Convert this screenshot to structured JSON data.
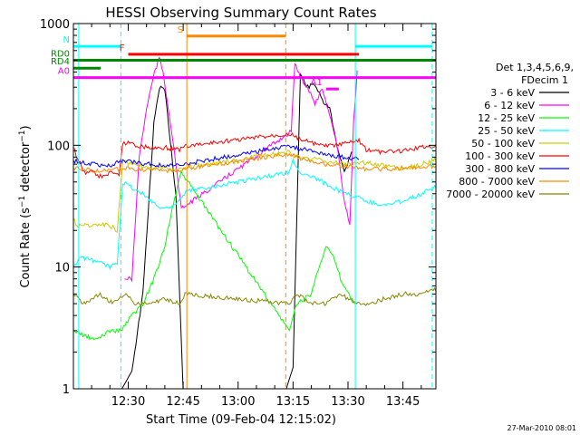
{
  "chart_data": {
    "type": "line",
    "title": "HESSI Observing Summary Count Rates",
    "xlabel": "Start Time (09-Feb-04 12:15:02)",
    "ylabel": "Count Rate (s⁻¹ detector⁻¹)",
    "y_scale": "log",
    "ylim": [
      1,
      1000
    ],
    "xlim": [
      "12:15:02",
      "13:54:00"
    ],
    "grid": false,
    "legend_placement": "right",
    "x_ticks": [
      "12:30",
      "12:45",
      "13:00",
      "13:15",
      "13:30",
      "13:45"
    ],
    "y_ticks": [
      "1",
      "10",
      "100",
      "1000"
    ],
    "legend_header": [
      "Det 1,3,4,5,6,9,",
      "FDecim 1"
    ],
    "timestamp": "27-Mar-2010 08:01",
    "series": [
      {
        "name": "3 - 6 keV",
        "color": "#000000",
        "x": [
          "12:15:02",
          "12:25:00",
          "12:28:00",
          "12:31:00",
          "12:34:00",
          "12:37:00",
          "12:38:30",
          "12:40:00",
          "12:41:00",
          "12:43:00",
          "12:45:00",
          "13:13:00",
          "13:15:00",
          "13:17:00",
          "13:19:00",
          "13:21:00",
          "13:23:00",
          "13:25:00",
          "13:27:00",
          "13:29:00",
          "13:31:00"
        ],
        "y": [
          0,
          0,
          0,
          1.4,
          6,
          150,
          300,
          280,
          150,
          40,
          0,
          0,
          1.5,
          380,
          300,
          320,
          230,
          200,
          100,
          60,
          90
        ]
      },
      {
        "name": "6 - 12 keV",
        "color": "#ff00ff",
        "x": [
          "12:29:00",
          "12:31:00",
          "12:33:00",
          "12:35:00",
          "12:37:00",
          "12:38:30",
          "12:39:30",
          "12:41:00",
          "12:43:00",
          "12:44:30",
          "13:14:30",
          "13:15:30",
          "13:17:00",
          "13:19:00",
          "13:21:00",
          "13:23:00",
          "13:25:00",
          "13:27:00",
          "13:29:00",
          "13:30:30",
          "13:31:30",
          "13:32:30"
        ],
        "y": [
          8,
          8,
          80,
          200,
          380,
          520,
          400,
          200,
          70,
          30,
          130,
          480,
          360,
          300,
          220,
          290,
          180,
          100,
          35,
          22,
          150,
          400
        ]
      },
      {
        "name": "12 - 25 keV",
        "color": "#00ff00",
        "x": [
          "12:15:02",
          "12:21:00",
          "12:25:00",
          "12:28:00",
          "12:31:00",
          "12:34:00",
          "12:37:00",
          "12:40:00",
          "12:42:00",
          "12:44:30",
          "13:14:00",
          "13:16:00",
          "13:20:00",
          "13:22:00",
          "13:24:00",
          "13:26:00",
          "13:28:00",
          "13:30:00",
          "13:32:00"
        ],
        "y": [
          3,
          2.5,
          3,
          3,
          4,
          5,
          8,
          15,
          30,
          60,
          3,
          5,
          6,
          10,
          15,
          12,
          8,
          6,
          5
        ]
      },
      {
        "name": "25 - 50 keV",
        "color": "#00ffff",
        "x": [
          "12:15:02",
          "12:17:00",
          "12:22:00",
          "12:25:00",
          "12:27:00",
          "12:28:30",
          "12:31:00",
          "12:35:00",
          "12:39:00",
          "12:43:00",
          "12:45:00",
          "12:46:00",
          "13:14:00",
          "13:15:00",
          "13:17:00",
          "13:20:00",
          "13:23:00",
          "13:26:00",
          "13:29:00",
          "13:32:00",
          "13:35:00",
          "13:40:00",
          "13:45:00",
          "13:50:00",
          "13:54:00"
        ],
        "y": [
          10,
          12,
          11,
          10,
          11,
          50,
          45,
          38,
          30,
          33,
          38,
          42,
          60,
          75,
          60,
          55,
          50,
          45,
          40,
          38,
          35,
          32,
          35,
          40,
          46
        ]
      },
      {
        "name": "50 - 100 keV",
        "color": "#cccc00",
        "x": [
          "12:15:02",
          "12:16:00",
          "12:25:00",
          "12:27:00",
          "12:28:30",
          "12:32:00",
          "12:36:00",
          "12:40:00",
          "12:44:00",
          "12:45:30",
          "13:14:00",
          "13:15:00",
          "13:18:00",
          "13:22:00",
          "13:26:00",
          "13:30:00",
          "13:33:00",
          "13:36:00",
          "13:40:00",
          "13:45:00",
          "13:50:00",
          "13:54:00"
        ],
        "y": [
          25,
          22,
          22,
          20,
          72,
          70,
          66,
          64,
          64,
          66,
          88,
          82,
          80,
          76,
          72,
          70,
          72,
          72,
          68,
          64,
          70,
          76
        ]
      },
      {
        "name": "100 - 300 keV",
        "color": "#ff0000",
        "x": [
          "12:15:02",
          "12:16:30",
          "12:18:00",
          "12:20:00",
          "12:22:00",
          "12:24:00",
          "12:26:00",
          "12:27:30",
          "12:28:30",
          "12:30:00",
          "12:32:00",
          "12:34:00",
          "12:37:00",
          "12:40:00",
          "12:44:00",
          "12:45:30",
          "13:14:00",
          "13:15:30",
          "13:18:00",
          "13:21:00",
          "13:24:00",
          "13:27:00",
          "13:30:00",
          "13:33:00",
          "13:35:00",
          "13:38:00",
          "13:41:00",
          "13:45:00",
          "13:50:00",
          "13:54:00"
        ],
        "y": [
          95,
          75,
          60,
          62,
          55,
          58,
          60,
          55,
          105,
          105,
          100,
          98,
          95,
          96,
          92,
          98,
          125,
          118,
          110,
          102,
          98,
          100,
          104,
          110,
          92,
          88,
          88,
          90,
          96,
          100
        ]
      },
      {
        "name": "300 - 800 keV",
        "color": "#0000ff",
        "x": [
          "12:15:02",
          "12:20:00",
          "12:25:00",
          "12:28:30",
          "12:32:00",
          "12:36:00",
          "12:40:00",
          "12:44:00",
          "12:45:30",
          "13:14:00",
          "13:16:00",
          "13:20:00",
          "13:24:00",
          "13:28:00",
          "13:32:00",
          "13:33:00"
        ],
        "y": [
          75,
          70,
          68,
          75,
          72,
          70,
          68,
          68,
          70,
          100,
          95,
          90,
          85,
          80,
          78,
          76
        ]
      },
      {
        "name": "800 - 7000 keV",
        "color": "#ff8800",
        "x": [
          "12:15:02",
          "12:20:00",
          "12:25:00",
          "12:28:30",
          "12:32:00",
          "12:36:00",
          "12:40:00",
          "12:44:00",
          "12:45:30",
          "13:14:00",
          "13:16:00",
          "13:20:00",
          "13:24:00",
          "13:28:00",
          "13:32:00",
          "13:35:00",
          "13:40:00",
          "13:45:00",
          "13:50:00",
          "13:54:00"
        ],
        "y": [
          65,
          62,
          62,
          65,
          64,
          63,
          62,
          62,
          64,
          85,
          80,
          75,
          70,
          68,
          66,
          64,
          64,
          65,
          66,
          68
        ]
      },
      {
        "name": "7000 - 20000 keV",
        "color": "#888800",
        "x": [
          "12:15:02",
          "12:18:00",
          "12:22:00",
          "12:26:00",
          "12:29:00",
          "12:32:00",
          "12:36:00",
          "12:40:00",
          "12:44:00",
          "12:45:30",
          "13:14:00",
          "13:16:00",
          "13:20:00",
          "13:24:00",
          "13:28:00",
          "13:32:00",
          "13:36:00",
          "13:40:00",
          "13:45:00",
          "13:50:00",
          "13:54:00"
        ],
        "y": [
          6,
          5,
          6,
          5,
          6,
          5,
          5,
          5.5,
          5,
          6,
          5,
          6,
          5,
          5,
          6,
          5,
          5,
          5.5,
          6,
          6,
          6.5
        ]
      }
    ],
    "vertical_lines": [
      {
        "time": "12:16:30",
        "color": "#00ffff",
        "style": "solid"
      },
      {
        "time": "12:28:00",
        "color": "#00ffff",
        "style": "dashed"
      },
      {
        "time": "12:46:00",
        "color": "#ff8800",
        "style": "solid"
      },
      {
        "time": "13:13:00",
        "color": "#ff8800",
        "style": "dashed"
      },
      {
        "time": "13:32:00",
        "color": "#00ffff",
        "style": "solid"
      },
      {
        "time": "13:53:00",
        "color": "#00ffff",
        "style": "dashed"
      }
    ],
    "flag_bars": [
      {
        "label": "N",
        "color": "#00ffff",
        "y": 650,
        "segments": [
          [
            "12:15:02",
            "12:28:00"
          ],
          [
            "13:32:00",
            "13:53:00"
          ]
        ]
      },
      {
        "label": "S",
        "color": "#ff8800",
        "y": 790,
        "segments": [
          [
            "12:46:00",
            "13:13:00"
          ]
        ]
      },
      {
        "label": "F",
        "color": "#ff0000",
        "y": 560,
        "segments": [
          [
            "12:30:00",
            "13:33:00"
          ]
        ]
      },
      {
        "label": "RD0",
        "color": "#008800",
        "y": 500,
        "segments": [
          [
            "12:15:02",
            "13:54:00"
          ]
        ]
      },
      {
        "label": "RD4",
        "color": "#008800",
        "y": 430,
        "segments": [
          [
            "12:15:02",
            "12:22:30"
          ]
        ]
      },
      {
        "label": "A0",
        "color": "#ff00ff",
        "y": 360,
        "segments": [
          [
            "12:15:02",
            "13:54:00"
          ]
        ]
      },
      {
        "label": "A1",
        "color": "#ff00ff",
        "y": 290,
        "segments": [
          [
            "13:24:00",
            "13:27:30"
          ]
        ]
      }
    ]
  }
}
